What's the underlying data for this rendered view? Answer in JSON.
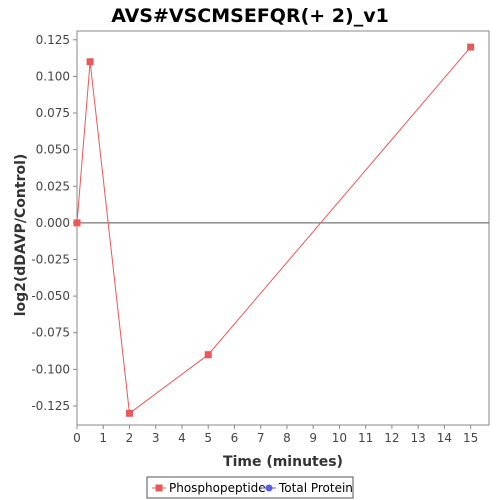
{
  "chart_data": {
    "type": "line",
    "title": "AVS#VSCMSEFQR(+ 2)_v1",
    "xlabel": "Time (minutes)",
    "ylabel": "log2(dDAVP/Control)",
    "xlim": [
      0,
      15.7
    ],
    "ylim": [
      -0.138,
      0.131
    ],
    "x_ticks": [
      0,
      1,
      2,
      3,
      4,
      5,
      6,
      7,
      8,
      9,
      10,
      11,
      12,
      13,
      14,
      15
    ],
    "y_ticks": [
      0.125,
      0.1,
      0.075,
      0.05,
      0.025,
      0.0,
      -0.025,
      -0.05,
      -0.075,
      -0.1,
      -0.125
    ],
    "y_tick_labels": [
      "0.125",
      "0.100",
      "0.075",
      "0.050",
      "0.025",
      "0.000",
      "-0.025",
      "-0.050",
      "-0.075",
      "-0.100",
      "-0.125"
    ],
    "zero_line": true,
    "grid": false,
    "legend_position": "bottom-center",
    "series": [
      {
        "name": "Phosphopeptide",
        "color": "#e8595a",
        "marker": "square",
        "x": [
          0,
          0.5,
          2,
          5,
          15
        ],
        "y": [
          0.0,
          0.11,
          -0.13,
          -0.09,
          0.12
        ]
      },
      {
        "name": "Total Protein",
        "color": "#5b5bef",
        "marker": "circle",
        "x": [],
        "y": []
      }
    ]
  }
}
